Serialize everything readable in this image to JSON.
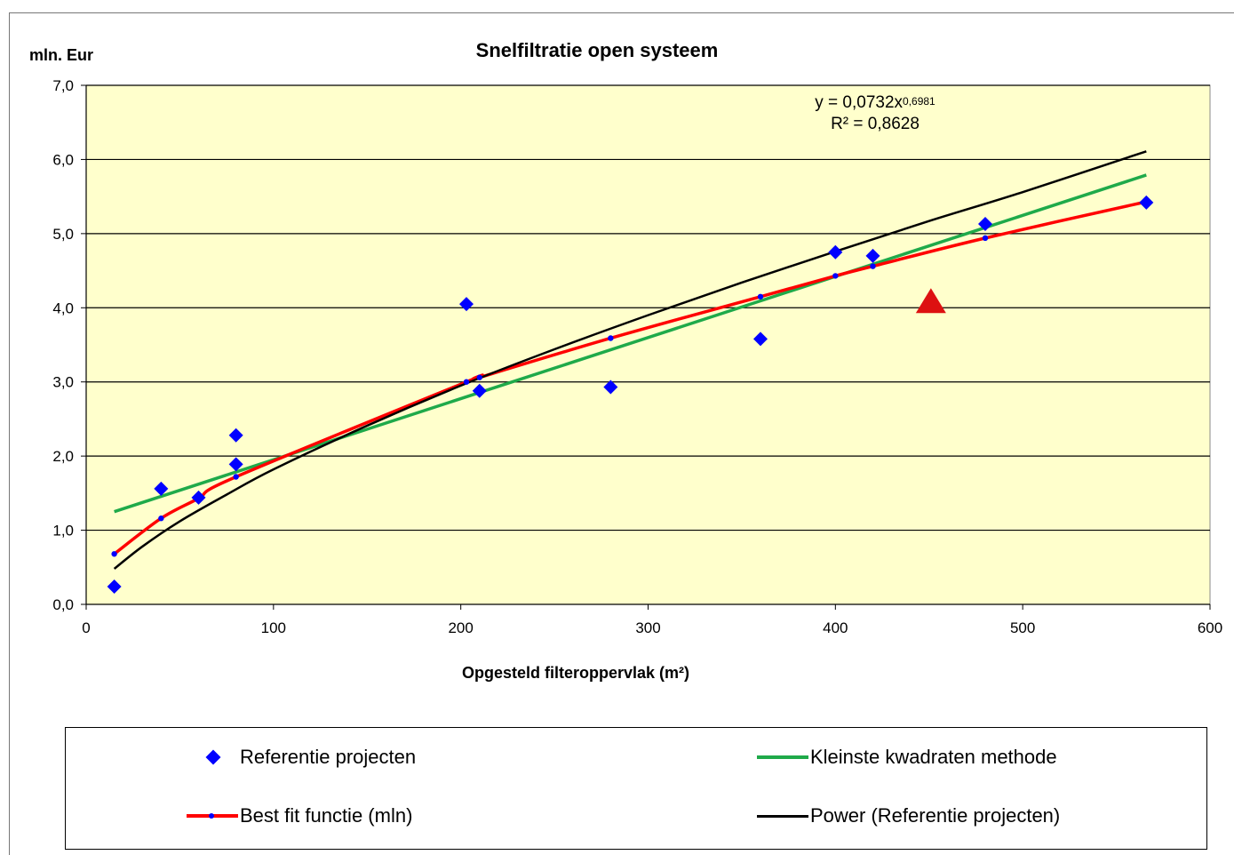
{
  "chart_data": {
    "type": "scatter",
    "title": "Snelfiltratie open systeem",
    "ylabel": "mln. Eur",
    "xlabel": "Opgesteld filteroppervlak (m²)",
    "xlim": [
      0,
      600
    ],
    "ylim": [
      0,
      7
    ],
    "x_ticks": [
      "0",
      "100",
      "200",
      "300",
      "400",
      "500",
      "600"
    ],
    "y_ticks": [
      "0,0",
      "1,0",
      "2,0",
      "3,0",
      "4,0",
      "5,0",
      "6,0",
      "7,0"
    ],
    "grid": "horizontal",
    "plot_background": "#ffffcc",
    "legend_position": "bottom",
    "equation": {
      "prefix": "y = 0,0732x",
      "exponent": "0,6981",
      "r_squared": "R² = 0,8628"
    },
    "series": [
      {
        "name": "Referentie projecten",
        "kind": "markers",
        "marker": "diamond",
        "color": "#0000ff",
        "x": [
          15,
          40,
          60,
          80,
          80,
          203,
          210,
          280,
          360,
          400,
          420,
          480,
          566
        ],
        "y": [
          0.24,
          1.56,
          1.44,
          1.89,
          2.28,
          4.05,
          2.88,
          2.93,
          3.58,
          4.75,
          4.7,
          5.13,
          5.42
        ]
      },
      {
        "name": "Kleinste kwadraten methode",
        "kind": "line",
        "color": "#1faa4a",
        "x": [
          15,
          566
        ],
        "y": [
          1.25,
          5.79
        ]
      },
      {
        "name": "Best fit functie (mln)",
        "kind": "line-markers",
        "color": "#ff0000",
        "marker_color": "#0000ff",
        "x": [
          15,
          40,
          60,
          80,
          203,
          210,
          280,
          360,
          400,
          420,
          480,
          566
        ],
        "y": [
          0.68,
          1.16,
          1.43,
          1.72,
          3.0,
          3.06,
          3.59,
          4.15,
          4.43,
          4.56,
          4.94,
          5.43
        ]
      },
      {
        "name": "Power (Referentie projecten)",
        "kind": "line",
        "color": "#000000",
        "x": [
          15,
          30,
          50,
          75,
          100,
          150,
          200,
          250,
          300,
          350,
          400,
          450,
          500,
          566
        ],
        "y": [
          0.48,
          0.78,
          1.12,
          1.48,
          1.82,
          2.41,
          2.95,
          3.44,
          3.9,
          4.34,
          4.76,
          5.17,
          5.56,
          6.11
        ]
      }
    ],
    "annotations": [
      {
        "shape": "triangle",
        "color": "#dd1111",
        "x": 451,
        "y": 4.0
      }
    ]
  }
}
